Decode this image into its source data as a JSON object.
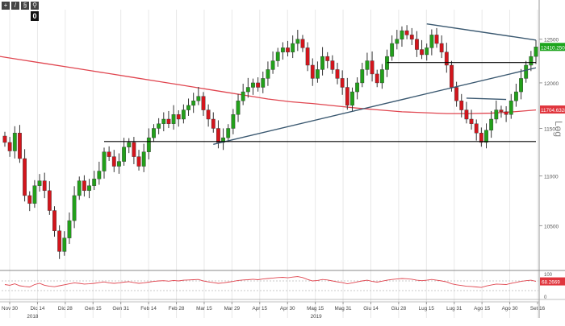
{
  "toolbar": {
    "buttons": [
      {
        "name": "crosshair-tool-icon",
        "glyph": "+"
      },
      {
        "name": "line-tool-icon",
        "glyph": "/"
      },
      {
        "name": "settings-tool-icon",
        "glyph": "§"
      },
      {
        "name": "zoom-tool-icon",
        "glyph": "⚲"
      }
    ],
    "badge": "0"
  },
  "chart_data": {
    "type": "candlestick",
    "scale": "log",
    "scale_label": "Log",
    "ylim": [
      10100,
      12850
    ],
    "y_ticks": [
      "12500",
      "12000",
      "11500",
      "11000",
      "10500"
    ],
    "x_tick_labels": [
      "Nov 30",
      "Dic 14",
      "Dic 28",
      "Gen 15",
      "Gen 31",
      "Feb 14",
      "Feb 28",
      "Mar 15",
      "Mar 29",
      "Apr 15",
      "Apr 30",
      "Mag 15",
      "Mag 31",
      "Giu 14",
      "Giu 28",
      "Lug 15",
      "Lug 31",
      "Ago 15",
      "Ago 30",
      "Set 16"
    ],
    "year_labels": [
      "2018",
      "2019"
    ],
    "last_price_label": "12410.2500",
    "ma_label": "11704.6328",
    "oscillator_label": "68.2669",
    "oscillator_levels": [
      "100",
      "0"
    ],
    "closes": [
      11350,
      11260,
      11450,
      11180,
      10800,
      10720,
      10900,
      10950,
      10850,
      10650,
      10450,
      10250,
      10380,
      10550,
      10800,
      10950,
      10850,
      10900,
      10970,
      11050,
      11250,
      11200,
      11100,
      11150,
      11300,
      11350,
      11200,
      11100,
      11250,
      11400,
      11500,
      11550,
      11600,
      11550,
      11650,
      11600,
      11700,
      11750,
      11800,
      11850,
      11700,
      11600,
      11500,
      11350,
      11400,
      11500,
      11650,
      11800,
      11900,
      11950,
      12000,
      11950,
      12050,
      12150,
      12250,
      12350,
      12400,
      12350,
      12450,
      12500,
      12400,
      12200,
      12050,
      12150,
      12300,
      12250,
      12150,
      12050,
      11950,
      11750,
      11900,
      12000,
      12150,
      12250,
      12100,
      12000,
      12150,
      12300,
      12450,
      12500,
      12600,
      12550,
      12500,
      12380,
      12320,
      12400,
      12550,
      12450,
      12350,
      12200,
      11950,
      11800,
      11700,
      11600,
      11550,
      11450,
      11350,
      11480,
      11600,
      11700,
      11680,
      11650,
      11800,
      11900,
      12050,
      12200,
      12300,
      12410
    ],
    "ma_200": [
      12300,
      12260,
      12220,
      12180,
      12140,
      12100,
      12060,
      12020,
      11980,
      11940,
      11900,
      11860,
      11820,
      11790,
      11770,
      11745,
      11720,
      11700,
      11680,
      11670,
      11660,
      11660,
      11665,
      11680,
      11700
    ],
    "trendlines": [
      {
        "name": "resistance-downtrend",
        "from": [
          85,
          12680
        ],
        "to": [
          107,
          12490
        ]
      },
      {
        "name": "rising-support",
        "from": [
          42,
          11330
        ],
        "to": [
          107,
          12170
        ]
      },
      {
        "name": "horizontal-resistance",
        "from": [
          77,
          12230
        ],
        "to": [
          107,
          12230
        ]
      },
      {
        "name": "horizontal-support",
        "from": [
          20,
          11360
        ],
        "to": [
          107,
          11360
        ]
      },
      {
        "name": "short-resistance",
        "from": [
          93,
          11830
        ],
        "to": [
          101,
          11815
        ]
      }
    ],
    "oscillator": [
      55,
      52,
      58,
      50,
      47,
      45,
      55,
      60,
      52,
      48,
      46,
      50,
      54,
      58,
      62,
      60,
      57,
      58,
      60,
      63,
      66,
      62,
      60,
      62,
      65,
      67,
      63,
      60,
      62,
      65,
      68,
      70,
      71,
      69,
      72,
      70,
      73,
      74,
      75,
      76,
      70,
      66,
      63,
      60,
      62,
      65,
      68,
      72,
      74,
      75,
      77,
      75,
      78,
      80,
      82,
      84,
      85,
      83,
      86,
      88,
      84,
      76,
      70,
      72,
      76,
      74,
      70,
      66,
      63,
      58,
      62,
      66,
      70,
      73,
      68,
      65,
      69,
      73,
      76,
      78,
      80,
      79,
      77,
      73,
      71,
      73,
      76,
      73,
      70,
      66,
      58,
      54,
      51,
      48,
      47,
      45,
      43,
      49,
      53,
      57,
      56,
      55,
      60,
      64,
      68,
      71,
      73,
      68
    ],
    "colors": {
      "up": "#22a01a",
      "down": "#d3151c",
      "ma": "#e0454f",
      "trend": "#3a5870",
      "level": "#000000",
      "price_tag": "#1ea51e",
      "ma_tag": "#e0353d"
    }
  }
}
